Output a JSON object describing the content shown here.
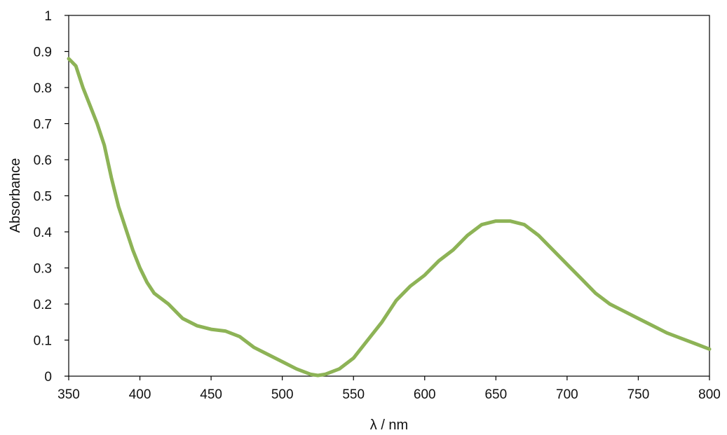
{
  "chart_data": {
    "type": "line",
    "xlabel": "λ / nm",
    "ylabel": "Absorbance",
    "xlim": [
      350,
      800
    ],
    "ylim": [
      0,
      1
    ],
    "x_ticks": [
      "350",
      "400",
      "450",
      "500",
      "550",
      "600",
      "650",
      "700",
      "750",
      "800"
    ],
    "y_ticks": [
      "0",
      "0.1",
      "0.2",
      "0.3",
      "0.4",
      "0.5",
      "0.6",
      "0.7",
      "0.8",
      "0.9",
      "1"
    ],
    "grid": false,
    "legend": "none",
    "series": [
      {
        "color": "#8db356",
        "x": [
          350,
          355,
          360,
          365,
          370,
          375,
          380,
          385,
          390,
          395,
          400,
          405,
          410,
          420,
          430,
          440,
          450,
          460,
          470,
          480,
          490,
          500,
          510,
          520,
          525,
          530,
          540,
          550,
          560,
          570,
          580,
          590,
          600,
          610,
          620,
          630,
          640,
          650,
          660,
          670,
          680,
          690,
          700,
          710,
          720,
          730,
          740,
          750,
          760,
          770,
          780,
          790,
          800
        ],
        "y": [
          0.88,
          0.86,
          0.8,
          0.75,
          0.7,
          0.64,
          0.55,
          0.47,
          0.41,
          0.35,
          0.3,
          0.26,
          0.23,
          0.2,
          0.16,
          0.14,
          0.13,
          0.125,
          0.11,
          0.08,
          0.06,
          0.04,
          0.02,
          0.005,
          0.002,
          0.005,
          0.02,
          0.05,
          0.1,
          0.15,
          0.21,
          0.25,
          0.28,
          0.32,
          0.35,
          0.39,
          0.42,
          0.43,
          0.43,
          0.42,
          0.39,
          0.35,
          0.31,
          0.27,
          0.23,
          0.2,
          0.18,
          0.16,
          0.14,
          0.12,
          0.105,
          0.09,
          0.075
        ]
      }
    ]
  }
}
